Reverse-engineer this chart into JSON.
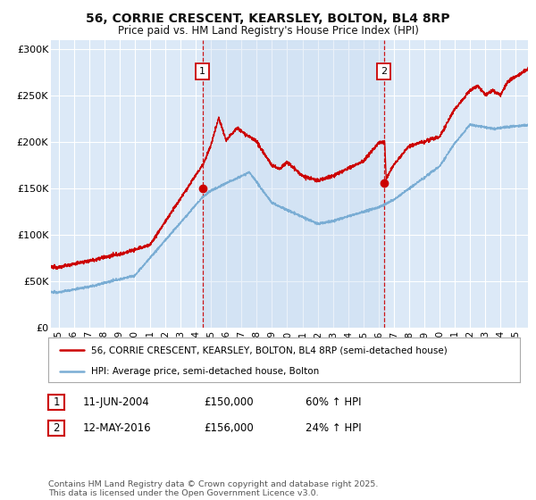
{
  "title": "56, CORRIE CRESCENT, KEARSLEY, BOLTON, BL4 8RP",
  "subtitle": "Price paid vs. HM Land Registry's House Price Index (HPI)",
  "title_fontsize": 10,
  "subtitle_fontsize": 8.5,
  "background_color": "#ffffff",
  "plot_bg_color": "#dce9f7",
  "shade_color": "#c5d8f0",
  "grid_color": "#ffffff",
  "ylim": [
    0,
    310000
  ],
  "yticks": [
    0,
    50000,
    100000,
    150000,
    200000,
    250000,
    300000
  ],
  "ytick_labels": [
    "£0",
    "£50K",
    "£100K",
    "£150K",
    "£200K",
    "£250K",
    "£300K"
  ],
  "red_color": "#cc0000",
  "blue_color": "#7aadd4",
  "marker1_date_x": 2004.44,
  "marker1_y": 150000,
  "marker2_date_x": 2016.36,
  "marker2_y": 156000,
  "legend_line1": "56, CORRIE CRESCENT, KEARSLEY, BOLTON, BL4 8RP (semi-detached house)",
  "legend_line2": "HPI: Average price, semi-detached house, Bolton",
  "table_row1": [
    "1",
    "11-JUN-2004",
    "£150,000",
    "60% ↑ HPI"
  ],
  "table_row2": [
    "2",
    "12-MAY-2016",
    "£156,000",
    "24% ↑ HPI"
  ],
  "footnote": "Contains HM Land Registry data © Crown copyright and database right 2025.\nThis data is licensed under the Open Government Licence v3.0.",
  "xmin": 1994.5,
  "xmax": 2025.8,
  "xticks": [
    1995,
    1996,
    1997,
    1998,
    1999,
    2000,
    2001,
    2002,
    2003,
    2004,
    2005,
    2006,
    2007,
    2008,
    2009,
    2010,
    2011,
    2012,
    2013,
    2014,
    2015,
    2016,
    2017,
    2018,
    2019,
    2020,
    2021,
    2022,
    2023,
    2024,
    2025
  ],
  "xtick_labels": [
    "95",
    "96",
    "97",
    "98",
    "99",
    "00",
    "01",
    "02",
    "03",
    "04",
    "05",
    "06",
    "07",
    "08",
    "09",
    "10",
    "11",
    "12",
    "13",
    "14",
    "15",
    "16",
    "17",
    "18",
    "19",
    "20",
    "21",
    "22",
    "23",
    "24",
    "25"
  ]
}
